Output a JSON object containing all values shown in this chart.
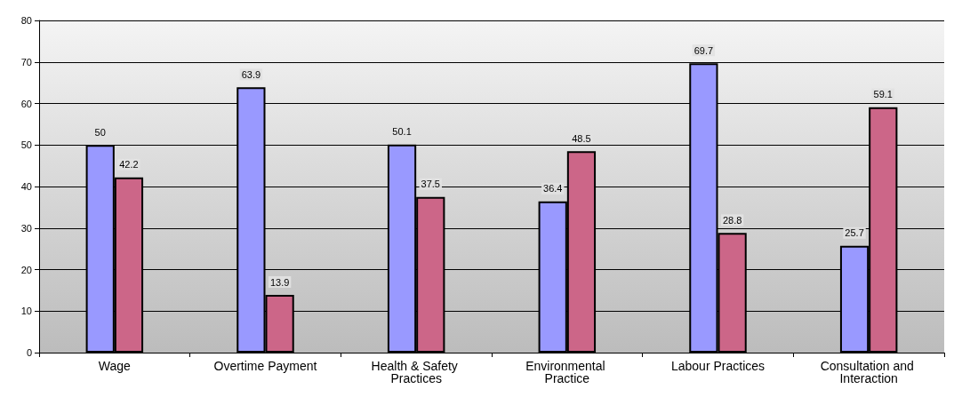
{
  "chart_data": {
    "type": "bar",
    "categories": [
      "Wage",
      "Overtime Payment",
      "Health & Safety Practices",
      "Environmental Practice",
      "Labour Practices",
      "Consultation and Interaction"
    ],
    "series": [
      {
        "color": "#9999ff",
        "values": [
          50,
          63.9,
          50.1,
          36.4,
          69.7,
          25.7
        ]
      },
      {
        "color": "#cc6688",
        "values": [
          42.2,
          13.9,
          37.5,
          48.5,
          28.8,
          59.1
        ]
      }
    ],
    "ylim": [
      0,
      80
    ],
    "yticks": [
      0,
      10,
      20,
      30,
      40,
      50,
      60,
      70,
      80
    ],
    "grid": "y",
    "data_labels": true
  }
}
